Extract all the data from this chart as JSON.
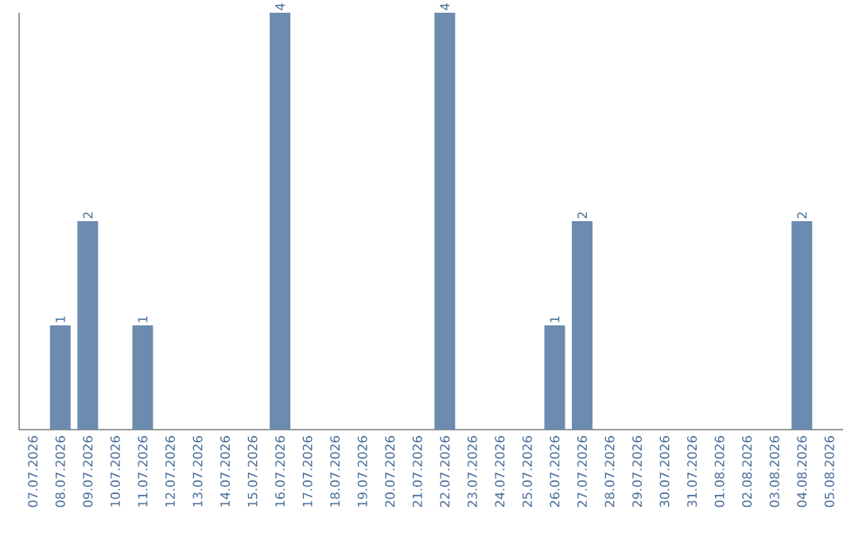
{
  "chart_data": {
    "type": "bar",
    "categories": [
      "07.07.2026",
      "08.07.2026",
      "09.07.2026",
      "10.07.2026",
      "11.07.2026",
      "12.07.2026",
      "13.07.2026",
      "14.07.2026",
      "15.07.2026",
      "16.07.2026",
      "17.07.2026",
      "18.07.2026",
      "19.07.2026",
      "20.07.2026",
      "21.07.2026",
      "22.07.2026",
      "23.07.2026",
      "24.07.2026",
      "25.07.2026",
      "26.07.2026",
      "27.07.2026",
      "28.07.2026",
      "29.07.2026",
      "30.07.2026",
      "31.07.2026",
      "01.08.2026",
      "02.08.2026",
      "03.08.2026",
      "04.08.2026",
      "05.08.2026"
    ],
    "values": [
      0,
      1,
      2,
      0,
      1,
      0,
      0,
      0,
      0,
      4,
      0,
      0,
      0,
      0,
      0,
      4,
      0,
      0,
      0,
      1,
      2,
      0,
      0,
      0,
      0,
      0,
      0,
      0,
      2,
      0
    ],
    "value_labels": [
      null,
      "1",
      "2",
      null,
      "1",
      null,
      null,
      null,
      null,
      "4",
      null,
      null,
      null,
      null,
      null,
      "4",
      null,
      null,
      null,
      "1",
      "2",
      null,
      null,
      null,
      null,
      null,
      null,
      null,
      "2",
      null
    ],
    "color": "#6b8cae",
    "grid": false
  }
}
